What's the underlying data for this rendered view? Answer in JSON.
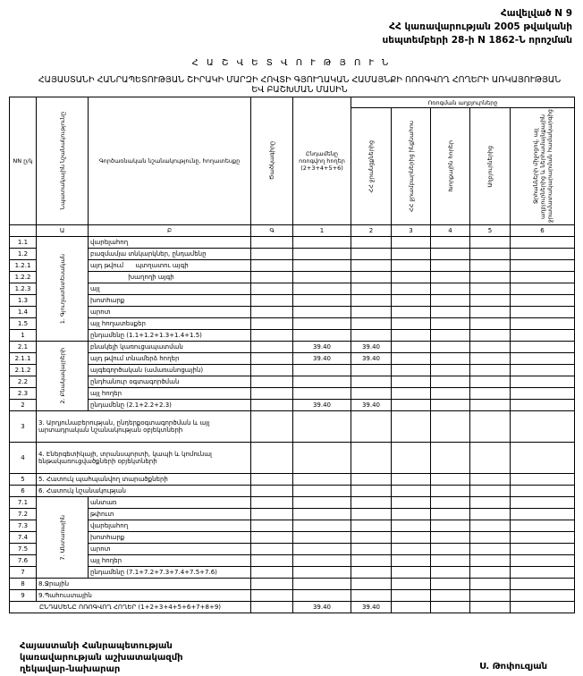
{
  "annex": {
    "line1": "Հավելված N 9",
    "line2": "ՀՀ կառավարության 2005 թվականի",
    "line3": "սեպտեմբերի 28-ի N 1862-Ն որոշման"
  },
  "title": "Հ Ա Շ Վ Ե Տ Վ Ո Ւ Թ Յ Ո Ւ Ն",
  "subtitle": "ՀԱՅԱՍՏԱՆԻ ՀԱՆՐԱՊԵՏՈՒԹՅԱՆ ՇԻՐԱԿԻ ՄԱՐԶԻ ՀՈՎՏԻ ԳՅՈՒՂԱԿԱՆ ՀԱՄԱՅՆՔԻ ՈՌՈԳՎՈՂ ՀՈՂԵՐԻ ԱՌԿԱՅՈՒԹՅԱՆ ԵՎ ԲԱՇԽՄԱՆ ՄԱՍԻՆ",
  "table": {
    "headers": {
      "nn": "NN ը/կ",
      "purpose": "Նպատակային նշանակությունը",
      "function": "Գործառնական նշանակությունը, հողատեսքը",
      "code": "Ծածկագիրը",
      "total": "Ընդամենը ոռոգվող հողեր (2+3+4+5+6)",
      "sources_group": "Ոռոգման աղբյուրները",
      "src2": "ՀՀ ջրանցքներից",
      "src3": "ՀՀ ջրամբարներից ինքնահոս",
      "src4": "Խորքային հորեր",
      "src5": "Աղբյուրներից",
      "src6": "Ջրհանների միջոցով, այլ աղբյուրներից և ներհամայնքային ջրամատակարարման համակարգից"
    },
    "col_numbers": [
      "Ա",
      "Բ",
      "Գ",
      "1",
      "2",
      "3",
      "4",
      "5",
      "6"
    ],
    "group1": "1. Գյուղատնտեսական",
    "group2": "2. Բնակավայրերի",
    "group7": "7. Անտառային",
    "rows1": [
      {
        "nn": "1.1",
        "name": "վարելահող",
        "total": "",
        "src2": ""
      },
      {
        "nn": "1.2",
        "name": "բազմամյա տնկարկներ, ընդամենը",
        "total": "",
        "src2": ""
      },
      {
        "nn": "1.2.1",
        "name": "այդ թվում      պտղատու այգի",
        "total": "",
        "src2": ""
      },
      {
        "nn": "1.2.2",
        "name": "                   խաղողի այգի",
        "total": "",
        "src2": ""
      },
      {
        "nn": "1.2.3",
        "name": "այլ",
        "total": "",
        "src2": ""
      },
      {
        "nn": "1.3",
        "name": "խոտհարք",
        "total": "",
        "src2": ""
      },
      {
        "nn": "1.4",
        "name": "արոտ",
        "total": "",
        "src2": ""
      },
      {
        "nn": "1.5",
        "name": "այլ հողատեսքեր",
        "total": "",
        "src2": ""
      },
      {
        "nn": "1",
        "name": "ընդամենը (1.1+1.2+1.3+1.4+1.5)",
        "total": "",
        "src2": ""
      }
    ],
    "rows2": [
      {
        "nn": "2.1",
        "name": "բնակելի կառուցապատման",
        "total": "39.40",
        "src2": "39.40"
      },
      {
        "nn": "2.1.1",
        "name": "այդ թվում տնամերձ հողեր",
        "total": "39.40",
        "src2": "39.40"
      },
      {
        "nn": "2.1.2",
        "name": "այգեգործական (ամառանոցային)",
        "total": "",
        "src2": ""
      },
      {
        "nn": "2.2",
        "name": "ընդհանուր օգտագործման",
        "total": "",
        "src2": ""
      },
      {
        "nn": "2.3",
        "name": "այլ հողեր",
        "total": "",
        "src2": ""
      },
      {
        "nn": "2",
        "name": "ընդամենը (2.1+2.2+2.3)",
        "total": "39.40",
        "src2": "39.40"
      }
    ],
    "row3": {
      "nn": "3",
      "name": "3. Արդյունաբերության, ընդերքօգտագործման և այլ արտադրական նշանակության օբյեկտների"
    },
    "row4": {
      "nn": "4",
      "name": "4. Էներգետիկայի, տրանսպորտի, կապի և կոմունալ ենթակառուցվածքների օբյեկտների"
    },
    "row5": {
      "nn": "5",
      "name": "5. Հատուկ պահպանվող տարածքների"
    },
    "row6": {
      "nn": "6",
      "name": "6. Հատուկ նշանակության"
    },
    "rows7": [
      {
        "nn": "7.1",
        "name": "անտառ"
      },
      {
        "nn": "7.2",
        "name": "թփուտ"
      },
      {
        "nn": "7.3",
        "name": "վարելահող"
      },
      {
        "nn": "7.4",
        "name": "խոտհարք"
      },
      {
        "nn": "7.5",
        "name": "արոտ"
      },
      {
        "nn": "7.6",
        "name": "այլ հողեր"
      },
      {
        "nn": "7",
        "name": "ընդամենը (7.1+7.2+7.3+7.4+7.5+7.6)"
      }
    ],
    "row8": {
      "nn": "8",
      "name": "8.Ջրային"
    },
    "row9": {
      "nn": "9",
      "name": "9.Պահուստային"
    },
    "grand_total": {
      "name": "ԸՆԴԱՄԵՆԸ ՈՌՈԳՎՈՂ ՀՈՂԵՐ (1+2+3+4+5+6+7+8+9)",
      "total": "39.40",
      "src2": "39.40"
    }
  },
  "footer": {
    "line1": "Հայաստանի Հանրապետության",
    "line2": "կառավարության աշխատակազմի",
    "line3": "ղեկավար-նախարար",
    "signatory": "Ս. Թոփուզյան"
  }
}
